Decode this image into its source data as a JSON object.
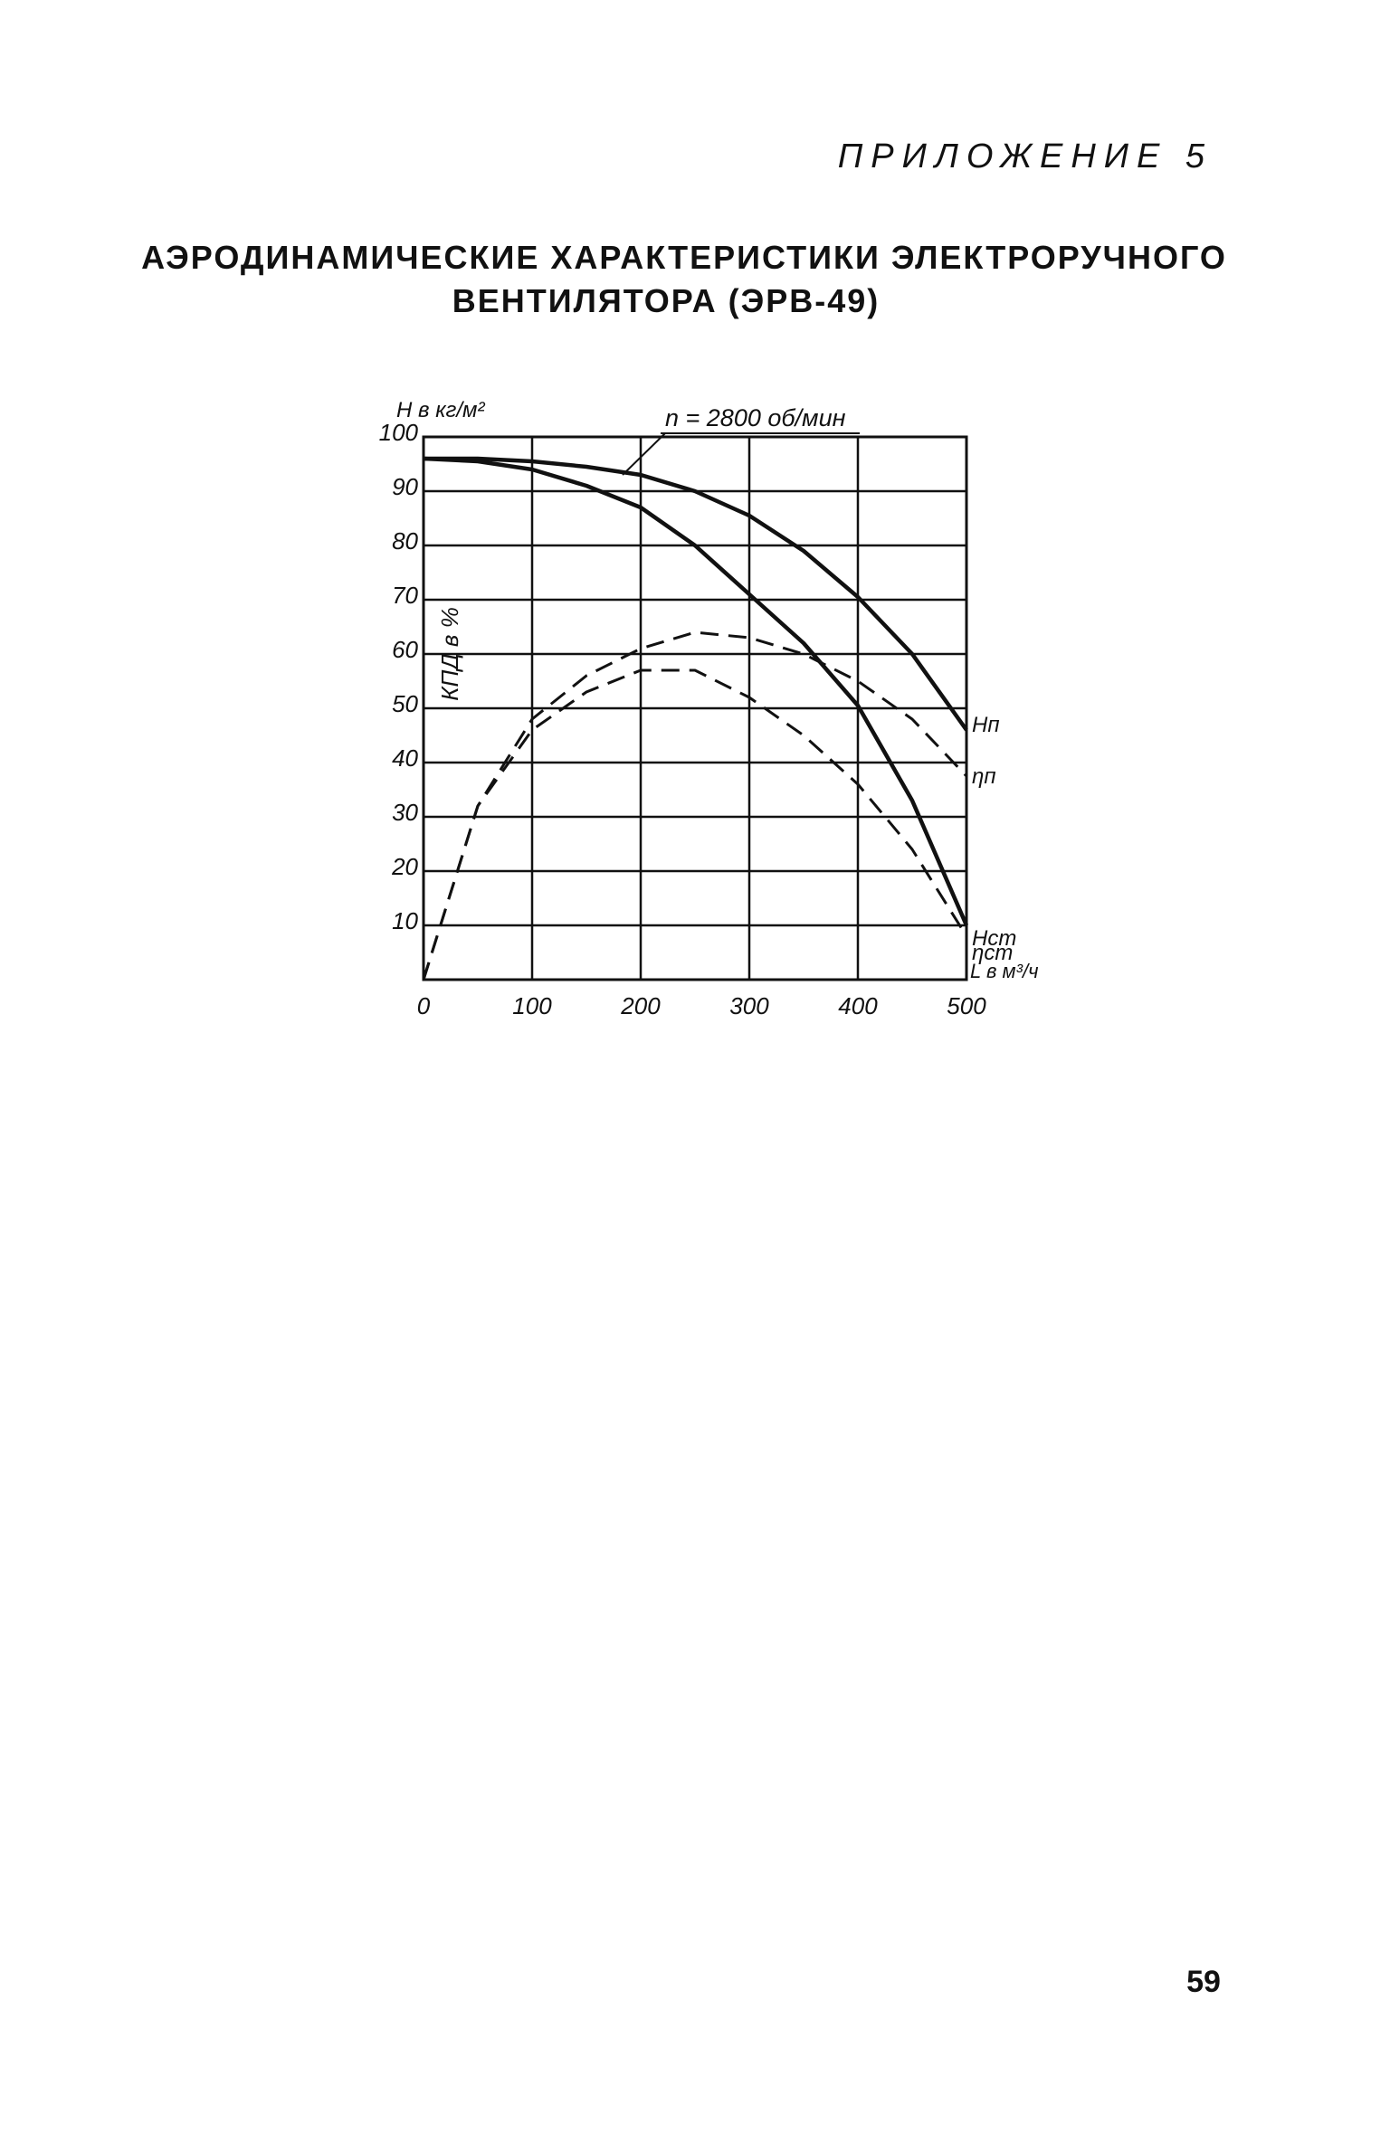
{
  "header": {
    "appendix": "ПРИЛОЖЕНИЕ 5",
    "title_lines": [
      "АЭРОДИНАМИЧЕСКИЕ ХАРАКТЕРИСТИКИ ЭЛЕКТРОРУЧНОГО",
      "ВЕНТИЛЯТОРА (ЭРВ-49)"
    ]
  },
  "chart_data": {
    "type": "line",
    "y_label": "H в кг/м²",
    "y_label_2": "КПД в %",
    "x_label": "L в м³/ч",
    "annotation": "n = 2800 об/мин",
    "x": [
      0,
      50,
      100,
      150,
      200,
      250,
      300,
      350,
      400,
      450,
      500
    ],
    "series": [
      {
        "name": "Hп",
        "color": "#111111",
        "style": "solid",
        "values": [
          96,
          96,
          95.5,
          94.5,
          93,
          90,
          85.5,
          79,
          70.5,
          60,
          46
        ]
      },
      {
        "name": "Hст",
        "color": "#111111",
        "style": "solid",
        "values": [
          96,
          95.5,
          94,
          91,
          87,
          80,
          71,
          62,
          50.5,
          33,
          10
        ]
      },
      {
        "name": "ηп",
        "color": "#111111",
        "style": "dashed",
        "values": [
          0,
          32,
          48,
          56,
          61,
          64,
          63,
          60,
          55,
          48,
          37.5
        ]
      },
      {
        "name": "ηст",
        "color": "#111111",
        "style": "dashed",
        "values": [
          0,
          32,
          46,
          53,
          57,
          57,
          52,
          45,
          36,
          24,
          8
        ]
      }
    ],
    "xlim": [
      0,
      500
    ],
    "ylim": [
      0,
      100
    ],
    "xticks": [
      0,
      100,
      200,
      300,
      400,
      500
    ],
    "yticks": [
      10,
      20,
      30,
      40,
      50,
      60,
      70,
      80,
      90,
      100
    ],
    "grid": true
  },
  "page_number": "59"
}
